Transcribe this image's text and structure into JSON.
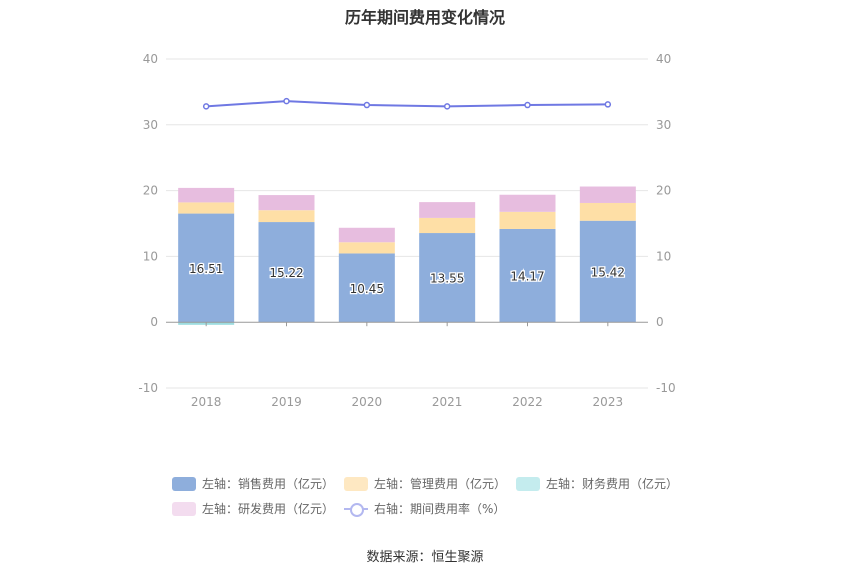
{
  "title": "历年期间费用变化情况",
  "source": "数据来源：恒生聚源",
  "chart_data": {
    "type": "bar",
    "stacked": true,
    "categories": [
      "2018",
      "2019",
      "2020",
      "2021",
      "2022",
      "2023"
    ],
    "ylim_left": [
      -10,
      40
    ],
    "ylim_right": [
      -10,
      40
    ],
    "y_ticks": [
      "-10",
      "0",
      "10",
      "20",
      "30",
      "40"
    ],
    "grid": true,
    "legend_position": "bottom",
    "series": [
      {
        "name": "左轴：销售费用（亿元）",
        "axis": "left",
        "color": "#8eaedc",
        "values": [
          16.51,
          15.22,
          10.45,
          13.55,
          14.17,
          15.42
        ],
        "labels": [
          "16.51",
          "15.22",
          "10.45",
          "13.55",
          "14.17",
          "15.42"
        ]
      },
      {
        "name": "左轴：管理费用（亿元）",
        "axis": "left",
        "color": "#fedfa6",
        "values": [
          1.7,
          1.8,
          1.7,
          2.3,
          2.6,
          2.7
        ]
      },
      {
        "name": "左轴：财务费用（亿元）",
        "axis": "left",
        "color": "#9ddde0",
        "values": [
          -0.4,
          0.0,
          0.0,
          0.0,
          0.0,
          0.0
        ]
      },
      {
        "name": "左轴：研发费用（亿元）",
        "axis": "left",
        "color": "#e7bddf",
        "values": [
          2.2,
          2.3,
          2.2,
          2.4,
          2.6,
          2.5
        ]
      },
      {
        "name": "右轴：期间费用率（%）",
        "axis": "right",
        "type": "line",
        "color": "#6f78e3",
        "values": [
          32.8,
          33.6,
          33.0,
          32.8,
          33.0,
          33.1
        ]
      }
    ]
  }
}
